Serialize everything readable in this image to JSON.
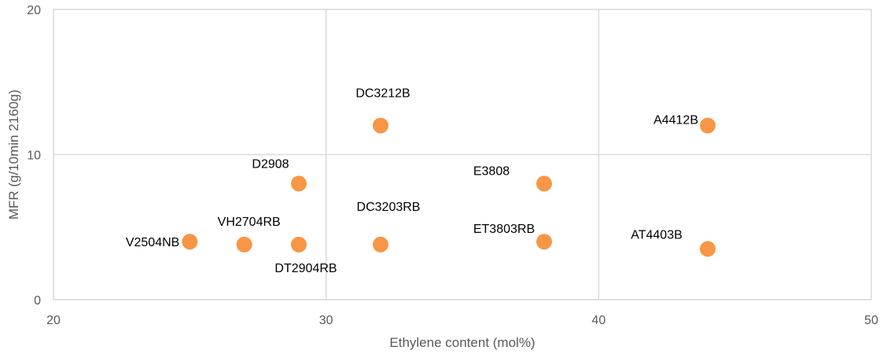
{
  "chart_data": {
    "type": "scatter",
    "title": "",
    "xlabel": "Ethylene content (mol%)",
    "ylabel": "MFR (g/10min 2160g)",
    "xlim": [
      20,
      50
    ],
    "ylim": [
      0,
      20
    ],
    "xticks": [
      20,
      30,
      40,
      50
    ],
    "yticks": [
      0,
      10,
      20
    ],
    "grid": true,
    "legend": "none",
    "marker_color": "#F79646",
    "points": [
      {
        "label": "V2504NB",
        "x": 25,
        "y": 4.0
      },
      {
        "label": "VH2704RB",
        "x": 27,
        "y": 3.8
      },
      {
        "label": "DT2904RB",
        "x": 29,
        "y": 3.8
      },
      {
        "label": "D2908",
        "x": 29,
        "y": 8
      },
      {
        "label": "DC3203RB",
        "x": 32,
        "y": 3.8
      },
      {
        "label": "DC3212B",
        "x": 32,
        "y": 12
      },
      {
        "label": "E3808",
        "x": 38,
        "y": 8
      },
      {
        "label": "ET3803RB",
        "x": 38,
        "y": 4.0
      },
      {
        "label": "A4412B",
        "x": 44,
        "y": 12
      },
      {
        "label": "AT4403B",
        "x": 44,
        "y": 3.5
      }
    ]
  }
}
